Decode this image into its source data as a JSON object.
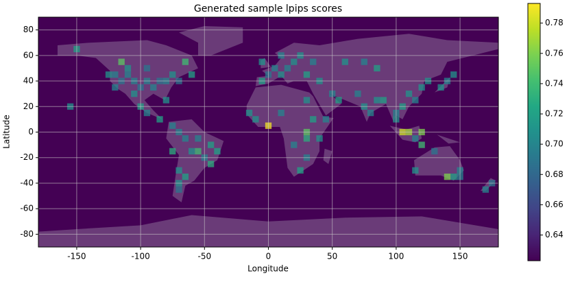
{
  "chart_data": {
    "type": "heatmap",
    "title": "Generated sample lpips scores",
    "x_label": "Longitude",
    "y_label": "Latitude",
    "xlim": [
      -180,
      180
    ],
    "ylim": [
      -90,
      90
    ],
    "xticks": [
      -150,
      -100,
      -50,
      0,
      50,
      100,
      150
    ],
    "yticks": [
      -80,
      -60,
      -40,
      -20,
      0,
      20,
      40,
      60,
      80
    ],
    "grid": true,
    "colormap": "viridis",
    "clim": [
      0.623,
      0.793
    ],
    "cticks": [
      0.64,
      0.66,
      0.68,
      0.7,
      0.72,
      0.74,
      0.76,
      0.78
    ],
    "x": [
      -120,
      -115,
      -110,
      -105,
      -100,
      -95,
      -90,
      -85,
      -80,
      -75,
      -120,
      -115,
      -105,
      -100,
      -95,
      -85,
      -65,
      -60,
      -150,
      -155,
      -80,
      -70,
      -110,
      -95,
      -125,
      -75,
      -70,
      -65,
      -55,
      -45,
      -40,
      -60,
      -50,
      -55,
      -45,
      -70,
      -65,
      -70,
      -70,
      -75,
      -5,
      0,
      5,
      10,
      15,
      20,
      10,
      25,
      35,
      -5,
      30,
      40,
      -10,
      0,
      10,
      30,
      35,
      30,
      30,
      40,
      20,
      30,
      25,
      -15,
      45,
      50,
      55,
      70,
      75,
      80,
      85,
      90,
      100,
      105,
      110,
      115,
      120,
      125,
      135,
      140,
      85,
      60,
      105,
      110,
      120,
      115,
      120,
      100,
      75,
      145,
      115,
      150,
      145,
      140,
      150,
      175,
      170,
      130
    ],
    "y": [
      45,
      40,
      45,
      40,
      35,
      40,
      35,
      40,
      40,
      45,
      35,
      55,
      30,
      20,
      15,
      10,
      55,
      45,
      65,
      20,
      25,
      40,
      50,
      50,
      45,
      5,
      0,
      -5,
      -5,
      -10,
      -15,
      -15,
      -20,
      -15,
      -25,
      -30,
      -35,
      -45,
      -40,
      -15,
      40,
      45,
      50,
      45,
      50,
      55,
      60,
      60,
      55,
      55,
      45,
      40,
      10,
      5,
      15,
      25,
      10,
      -5,
      0,
      -5,
      -10,
      -20,
      -30,
      15,
      10,
      30,
      25,
      30,
      20,
      15,
      25,
      25,
      15,
      20,
      30,
      25,
      35,
      40,
      35,
      40,
      50,
      55,
      0,
      0,
      0,
      -5,
      -10,
      10,
      55,
      45,
      -30,
      -30,
      -35,
      -35,
      -35,
      -40,
      -45,
      -15
    ],
    "values": [
      0.7,
      0.69,
      0.7,
      0.7,
      0.69,
      0.7,
      0.7,
      0.69,
      0.7,
      0.71,
      0.7,
      0.75,
      0.71,
      0.72,
      0.7,
      0.72,
      0.74,
      0.72,
      0.72,
      0.71,
      0.71,
      0.69,
      0.71,
      0.69,
      0.71,
      0.7,
      0.7,
      0.7,
      0.7,
      0.72,
      0.72,
      0.71,
      0.7,
      0.74,
      0.73,
      0.71,
      0.72,
      0.69,
      0.71,
      0.73,
      0.72,
      0.69,
      0.7,
      0.71,
      0.7,
      0.71,
      0.7,
      0.71,
      0.7,
      0.71,
      0.72,
      0.71,
      0.71,
      0.79,
      0.7,
      0.71,
      0.72,
      0.73,
      0.75,
      0.71,
      0.7,
      0.7,
      0.72,
      0.71,
      0.7,
      0.7,
      0.72,
      0.7,
      0.71,
      0.7,
      0.71,
      0.72,
      0.7,
      0.72,
      0.71,
      0.7,
      0.71,
      0.71,
      0.71,
      0.7,
      0.72,
      0.71,
      0.78,
      0.77,
      0.76,
      0.7,
      0.74,
      0.71,
      0.7,
      0.71,
      0.71,
      0.7,
      0.72,
      0.76,
      0.7,
      0.69,
      0.7,
      0.69
    ]
  }
}
